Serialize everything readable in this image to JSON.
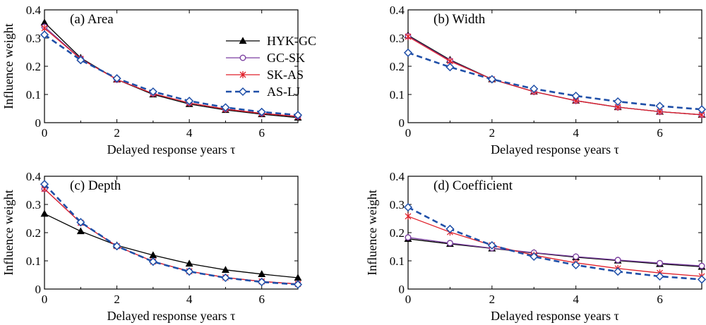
{
  "chart_data": [
    {
      "type": "line",
      "title": "(a) Area",
      "xlabel": "Delayed response years τ",
      "ylabel": "Influence weight",
      "x": [
        0,
        1,
        2,
        3,
        4,
        5,
        6,
        7
      ],
      "xlim": [
        0,
        7
      ],
      "ylim": [
        0,
        0.4
      ],
      "xticks": [
        "0",
        "2",
        "4",
        "6"
      ],
      "yticks": [
        "0",
        "0.1",
        "0.2",
        "0.3",
        "0.4"
      ],
      "legend": "top-right",
      "series": [
        {
          "name": "HYK-GC",
          "values": [
            0.355,
            0.23,
            0.153,
            0.1,
            0.066,
            0.045,
            0.03,
            0.018
          ]
        },
        {
          "name": "GC-SK",
          "values": [
            0.34,
            0.227,
            0.153,
            0.103,
            0.07,
            0.048,
            0.033,
            0.022
          ]
        },
        {
          "name": "SK-AS",
          "values": [
            0.335,
            0.226,
            0.153,
            0.103,
            0.07,
            0.048,
            0.033,
            0.022
          ]
        },
        {
          "name": "AS-LJ",
          "values": [
            0.312,
            0.222,
            0.157,
            0.11,
            0.077,
            0.054,
            0.038,
            0.027
          ]
        }
      ]
    },
    {
      "type": "line",
      "title": "(b) Width",
      "xlabel": "Delayed response years τ",
      "ylabel": "",
      "x": [
        0,
        1,
        2,
        3,
        4,
        5,
        6,
        7
      ],
      "xlim": [
        0,
        7
      ],
      "ylim": [
        0,
        0.4
      ],
      "xticks": [
        "0",
        "2",
        "4",
        "6"
      ],
      "yticks": [
        "0",
        "0.1",
        "0.2",
        "0.3",
        "0.4"
      ],
      "series": [
        {
          "name": "HYK-GC",
          "values": [
            0.31,
            0.223,
            0.154,
            0.11,
            0.078,
            0.055,
            0.039,
            0.028
          ]
        },
        {
          "name": "GC-SK",
          "values": [
            0.307,
            0.22,
            0.154,
            0.11,
            0.078,
            0.055,
            0.039,
            0.028
          ]
        },
        {
          "name": "SK-AS",
          "values": [
            0.305,
            0.218,
            0.154,
            0.11,
            0.078,
            0.055,
            0.039,
            0.028
          ]
        },
        {
          "name": "AS-LJ",
          "values": [
            0.248,
            0.197,
            0.154,
            0.12,
            0.095,
            0.075,
            0.059,
            0.047
          ]
        }
      ]
    },
    {
      "type": "line",
      "title": "(c) Depth",
      "xlabel": "Delayed response years τ",
      "ylabel": "Influence weight",
      "x": [
        0,
        1,
        2,
        3,
        4,
        5,
        6,
        7
      ],
      "xlim": [
        0,
        7
      ],
      "ylim": [
        0,
        0.4
      ],
      "xticks": [
        "0",
        "2",
        "4",
        "6"
      ],
      "yticks": [
        "0",
        "0.1",
        "0.2",
        "0.3",
        "0.4"
      ],
      "series": [
        {
          "name": "HYK-GC",
          "values": [
            0.267,
            0.205,
            0.155,
            0.12,
            0.09,
            0.068,
            0.053,
            0.04
          ]
        },
        {
          "name": "GC-SK",
          "values": [
            0.355,
            0.235,
            0.152,
            0.098,
            0.063,
            0.041,
            0.027,
            0.018
          ]
        },
        {
          "name": "SK-AS",
          "values": [
            0.355,
            0.235,
            0.152,
            0.098,
            0.063,
            0.041,
            0.027,
            0.018
          ]
        },
        {
          "name": "AS-LJ",
          "values": [
            0.372,
            0.237,
            0.152,
            0.097,
            0.062,
            0.04,
            0.025,
            0.016
          ]
        }
      ]
    },
    {
      "type": "line",
      "title": "(d) Coefficient",
      "xlabel": "Delayed response years τ",
      "ylabel": "Influence weight",
      "x": [
        0,
        1,
        2,
        3,
        4,
        5,
        6,
        7
      ],
      "xlim": [
        0,
        7
      ],
      "ylim": [
        0,
        0.4
      ],
      "xticks": [
        "0",
        "2",
        "4",
        "6"
      ],
      "yticks": [
        "0",
        "0.1",
        "0.2",
        "0.3",
        "0.4"
      ],
      "series": [
        {
          "name": "HYK-GC",
          "values": [
            0.178,
            0.16,
            0.144,
            0.128,
            0.113,
            0.101,
            0.089,
            0.079
          ]
        },
        {
          "name": "GC-SK",
          "values": [
            0.183,
            0.163,
            0.145,
            0.129,
            0.115,
            0.103,
            0.092,
            0.082
          ]
        },
        {
          "name": "SK-AS",
          "values": [
            0.258,
            0.202,
            0.155,
            0.12,
            0.093,
            0.073,
            0.057,
            0.045
          ]
        },
        {
          "name": "AS-LJ",
          "values": [
            0.29,
            0.213,
            0.155,
            0.115,
            0.085,
            0.062,
            0.045,
            0.034
          ]
        }
      ]
    }
  ],
  "styles": {
    "HYK-GC": {
      "color": "#000000",
      "marker": "triangle",
      "dash": "solid"
    },
    "GC-SK": {
      "color": "#7b3fa0",
      "marker": "circle",
      "dash": "solid"
    },
    "SK-AS": {
      "color": "#e0202a",
      "marker": "star",
      "dash": "solid"
    },
    "AS-LJ": {
      "color": "#1f4fa8",
      "marker": "diamond",
      "dash": "dashed"
    }
  }
}
